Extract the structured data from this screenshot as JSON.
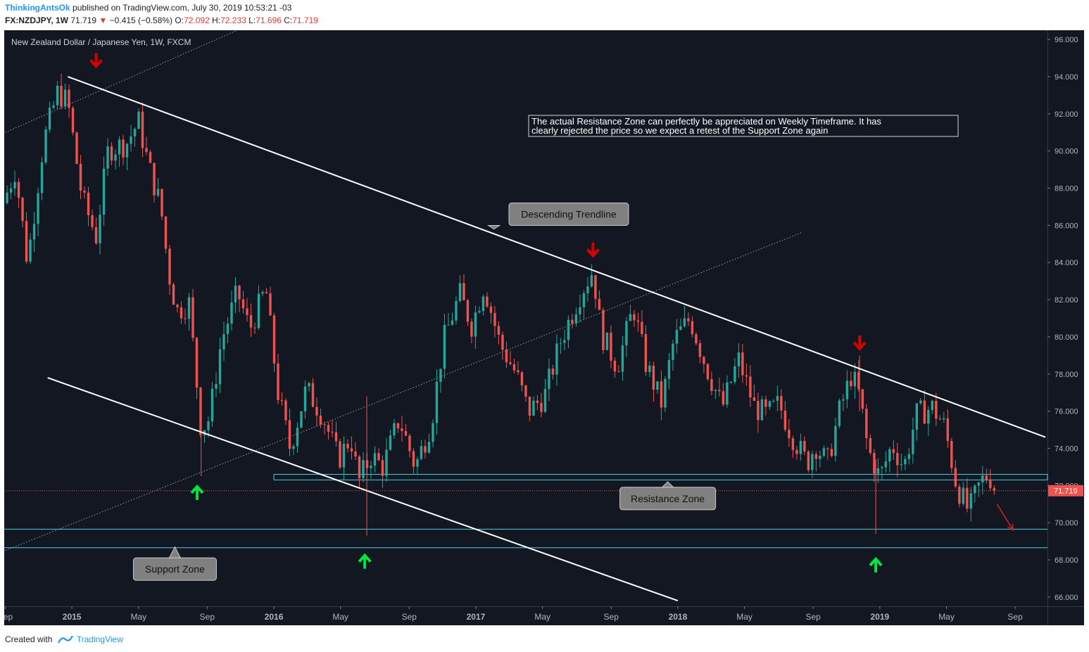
{
  "header": {
    "author": "ThinkingAntsOk",
    "published_text": "published on TradingView.com, July 30, 2019 10:53:21 -03",
    "symbol": "FX:NZDJPY, 1W",
    "last": "71.719",
    "change": "−0.415 (−0.58%)",
    "o_label": "O:",
    "o": "72.092",
    "h_label": "H:",
    "h": "72.233",
    "l_label": "L:",
    "l": "71.696",
    "c_label": "C:",
    "c": "71.719"
  },
  "footer": {
    "created_with": "Created with",
    "brand": "TradingView"
  },
  "colors": {
    "background": "#131722",
    "up": "#26a69a",
    "down": "#ef5350",
    "trendline": "#ffffff",
    "zone": "#4dd0e1",
    "arrow_red": "#d50000",
    "arrow_green": "#00e640"
  },
  "chart_data": {
    "type": "candlestick",
    "title": "New Zealand Dollar / Japanese Yen, 1W, FXCM",
    "ylim": [
      65.5,
      96.5
    ],
    "y_ticks": [
      "96.000",
      "94.000",
      "92.000",
      "90.000",
      "88.000",
      "86.000",
      "84.000",
      "82.000",
      "80.000",
      "78.000",
      "76.000",
      "74.000",
      "72.000",
      "70.000",
      "68.000",
      "66.000"
    ],
    "x_ticks": [
      {
        "label": "Sep",
        "t": 2014.67
      },
      {
        "label": "2015",
        "t": 2015.0
      },
      {
        "label": "May",
        "t": 2015.33
      },
      {
        "label": "Sep",
        "t": 2015.67
      },
      {
        "label": "2016",
        "t": 2016.0
      },
      {
        "label": "May",
        "t": 2016.33
      },
      {
        "label": "Sep",
        "t": 2016.67
      },
      {
        "label": "2017",
        "t": 2017.0
      },
      {
        "label": "May",
        "t": 2017.33
      },
      {
        "label": "Sep",
        "t": 2017.67
      },
      {
        "label": "2018",
        "t": 2018.0
      },
      {
        "label": "May",
        "t": 2018.33
      },
      {
        "label": "Sep",
        "t": 2018.67
      },
      {
        "label": "2019",
        "t": 2019.0
      },
      {
        "label": "May",
        "t": 2019.33
      },
      {
        "label": "Sep",
        "t": 2019.67
      }
    ],
    "price_path": [
      [
        2014.66,
        87.2
      ],
      [
        2014.72,
        89.0
      ],
      [
        2014.78,
        84.0
      ],
      [
        2014.86,
        90.5
      ],
      [
        2014.93,
        93.2
      ],
      [
        2014.98,
        92.6
      ],
      [
        2015.05,
        87.5
      ],
      [
        2015.12,
        85.4
      ],
      [
        2015.18,
        90.1
      ],
      [
        2015.27,
        90.4
      ],
      [
        2015.33,
        91.6
      ],
      [
        2015.38,
        89.2
      ],
      [
        2015.44,
        87.0
      ],
      [
        2015.48,
        83.4
      ],
      [
        2015.52,
        81.4
      ],
      [
        2015.58,
        81.8
      ],
      [
        2015.64,
        75.0
      ],
      [
        2015.68,
        75.6
      ],
      [
        2015.74,
        79.8
      ],
      [
        2015.82,
        82.4
      ],
      [
        2015.88,
        80.4
      ],
      [
        2015.96,
        82.6
      ],
      [
        2016.02,
        77.0
      ],
      [
        2016.08,
        74.0
      ],
      [
        2016.16,
        77.2
      ],
      [
        2016.24,
        75.8
      ],
      [
        2016.32,
        73.4
      ],
      [
        2016.38,
        74.6
      ],
      [
        2016.42,
        72.2
      ],
      [
        2016.48,
        73.6
      ],
      [
        2016.54,
        73.0
      ],
      [
        2016.62,
        75.6
      ],
      [
        2016.7,
        73.0
      ],
      [
        2016.78,
        75.4
      ],
      [
        2016.84,
        79.8
      ],
      [
        2016.92,
        82.3
      ],
      [
        2016.98,
        80.6
      ],
      [
        2017.04,
        82.8
      ],
      [
        2017.12,
        79.6
      ],
      [
        2017.2,
        78.0
      ],
      [
        2017.26,
        76.0
      ],
      [
        2017.34,
        76.8
      ],
      [
        2017.42,
        79.8
      ],
      [
        2017.52,
        82.4
      ],
      [
        2017.58,
        83.6
      ],
      [
        2017.62,
        80.2
      ],
      [
        2017.7,
        78.4
      ],
      [
        2017.78,
        81.6
      ],
      [
        2017.84,
        78.6
      ],
      [
        2017.92,
        76.4
      ],
      [
        2017.98,
        79.8
      ],
      [
        2018.06,
        81.0
      ],
      [
        2018.14,
        78.4
      ],
      [
        2018.22,
        76.2
      ],
      [
        2018.3,
        78.8
      ],
      [
        2018.38,
        76.2
      ],
      [
        2018.44,
        75.8
      ],
      [
        2018.5,
        76.4
      ],
      [
        2018.56,
        74.8
      ],
      [
        2018.64,
        73.2
      ],
      [
        2018.68,
        74.2
      ],
      [
        2018.74,
        73.2
      ],
      [
        2018.8,
        76.0
      ],
      [
        2018.86,
        78.0
      ],
      [
        2018.9,
        76.8
      ],
      [
        2018.94,
        74.0
      ],
      [
        2019.0,
        72.4
      ],
      [
        2019.06,
        74.2
      ],
      [
        2019.12,
        73.0
      ],
      [
        2019.18,
        75.8
      ],
      [
        2019.26,
        76.2
      ],
      [
        2019.32,
        75.2
      ],
      [
        2019.38,
        72.0
      ],
      [
        2019.44,
        70.6
      ],
      [
        2019.5,
        72.2
      ],
      [
        2019.54,
        72.6
      ],
      [
        2019.575,
        71.719
      ]
    ],
    "last_price": {
      "value": 71.719,
      "label": "71.719"
    },
    "descending_trendline": [
      [
        2014.98,
        94.0
      ],
      [
        2019.82,
        74.6
      ]
    ],
    "lower_channel_line": [
      [
        2014.88,
        77.8
      ],
      [
        2018.0,
        65.8
      ]
    ],
    "dotted_lines": [
      [
        [
          2014.67,
          91.0
        ],
        [
          2015.84,
          96.6
        ]
      ],
      [
        [
          2014.67,
          68.5
        ],
        [
          2018.61,
          85.6
        ]
      ]
    ],
    "support_zone": [
      68.65,
      69.65
    ],
    "resistance_zone": [
      72.3,
      72.6
    ],
    "resistance_zone_start": 2016.0,
    "spikes": [
      {
        "t": 2015.64,
        "high": 75.4,
        "low": 72.5
      },
      {
        "t": 2016.46,
        "high": 76.8,
        "low": 69.3
      },
      {
        "t": 2018.98,
        "high": 73.4,
        "low": 69.4
      },
      {
        "t": 2018.9,
        "high": 79.0,
        "low": 76.0
      }
    ],
    "red_arrows": [
      [
        2015.12,
        94.9
      ],
      [
        2017.58,
        84.7
      ],
      [
        2018.9,
        79.7
      ]
    ],
    "green_arrows": [
      [
        2015.62,
        71.6
      ],
      [
        2016.45,
        67.9
      ],
      [
        2018.98,
        67.7
      ]
    ],
    "projection_arrow": [
      [
        2019.58,
        71.0
      ],
      [
        2019.66,
        69.6
      ]
    ],
    "annotations": {
      "descending": {
        "text": "Descending Trendline",
        "t": 2017.46,
        "y": 86.6,
        "tail": [
          2017.09,
          85.8
        ]
      },
      "resistance": {
        "text": "Resistance Zone",
        "t": 2017.95,
        "y": 71.3,
        "tail": [
          2017.95,
          72.2
        ]
      },
      "support": {
        "text": "Support Zone",
        "t": 2015.51,
        "y": 67.5,
        "tail": [
          2015.51,
          68.7
        ]
      },
      "note": "The actual Resistance Zone can perfectly be appreciated on Weekly Timeframe. It has clearly rejected the price so we expect a retest of the Support Zone again",
      "note_line1": "The actual Resistance Zone can perfectly be appreciated on Weekly Timeframe. It has",
      "note_line2": "clearly rejected the price so we expect a retest of the Support Zone again"
    }
  }
}
